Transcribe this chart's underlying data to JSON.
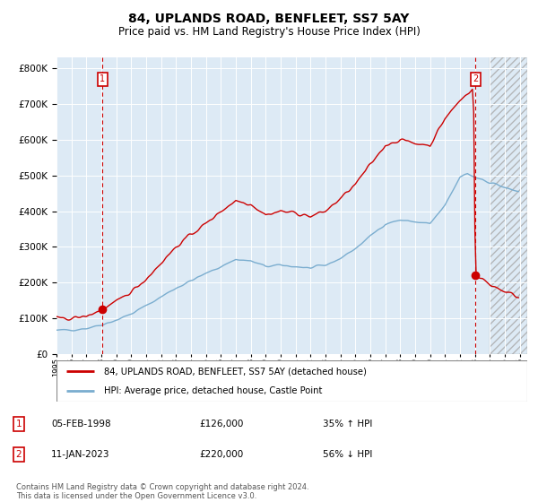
{
  "title": "84, UPLANDS ROAD, BENFLEET, SS7 5AY",
  "subtitle": "Price paid vs. HM Land Registry's House Price Index (HPI)",
  "title_fontsize": 10,
  "subtitle_fontsize": 8.5,
  "ylabel_ticks": [
    "£0",
    "£100K",
    "£200K",
    "£300K",
    "£400K",
    "£500K",
    "£600K",
    "£700K",
    "£800K"
  ],
  "ytick_values": [
    0,
    100000,
    200000,
    300000,
    400000,
    500000,
    600000,
    700000,
    800000
  ],
  "ylim": [
    0,
    830000
  ],
  "xlim_start": 1995.0,
  "xlim_end": 2026.5,
  "hatch_start": 2024.0,
  "sale1_x": 1998.09,
  "sale1_y": 126000,
  "sale2_x": 2023.03,
  "sale2_y": 220000,
  "legend_line1": "84, UPLANDS ROAD, BENFLEET, SS7 5AY (detached house)",
  "legend_line2": "HPI: Average price, detached house, Castle Point",
  "sale1_date": "05-FEB-1998",
  "sale1_price": "£126,000",
  "sale1_hpi": "35% ↑ HPI",
  "sale2_date": "11-JAN-2023",
  "sale2_price": "£220,000",
  "sale2_hpi": "56% ↓ HPI",
  "footer": "Contains HM Land Registry data © Crown copyright and database right 2024.\nThis data is licensed under the Open Government Licence v3.0.",
  "line_red_color": "#cc0000",
  "line_blue_color": "#7aadcf",
  "plot_bg": "#ddeaf5",
  "grid_color": "#ffffff"
}
